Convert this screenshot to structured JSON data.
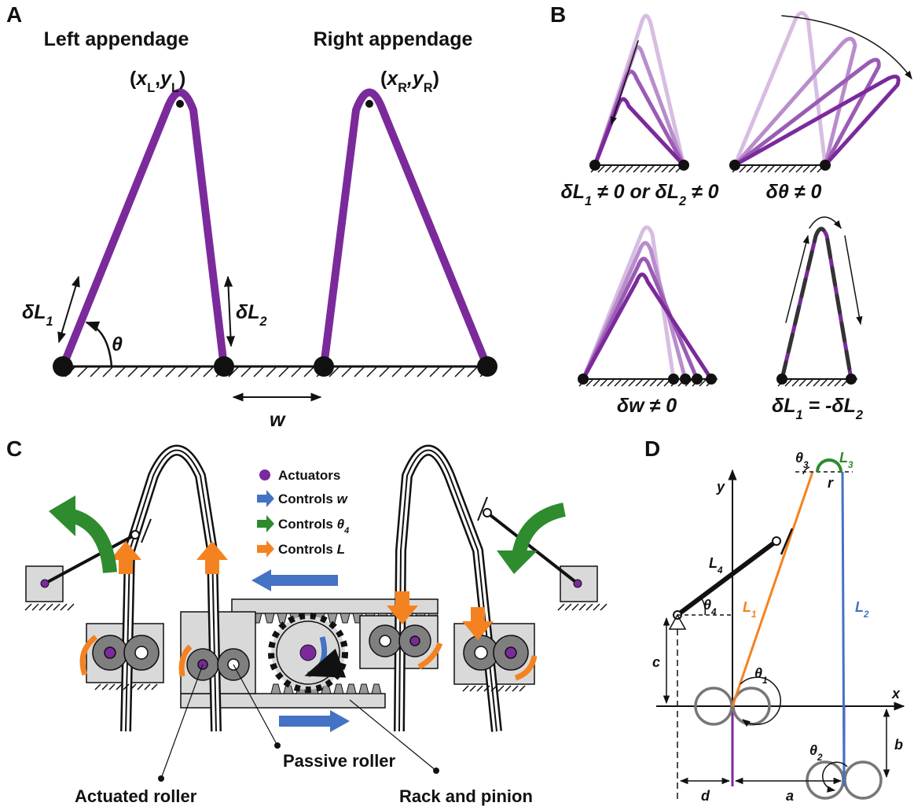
{
  "panel_labels": [
    "A",
    "B",
    "C",
    "D"
  ],
  "panel_a": {
    "left_title": "Left appendage",
    "right_title": "Right appendage",
    "left_point": [
      "(",
      "x",
      "L",
      ",",
      "y",
      "L",
      ")"
    ],
    "right_point": [
      "(",
      "x",
      "R",
      ",",
      "y",
      "R",
      ")"
    ],
    "delta_l1": [
      "δL",
      "1"
    ],
    "delta_l2": [
      "δL",
      "2"
    ],
    "theta": "θ",
    "w": "w"
  },
  "panel_b": {
    "captions": [
      [
        "δL",
        "1",
        " ≠ 0 or δL",
        "2",
        " ≠ 0"
      ],
      [
        "δθ ≠ 0"
      ],
      [
        "δw ≠ 0"
      ],
      [
        "δL",
        "1",
        " = -δL",
        "2"
      ]
    ]
  },
  "panel_c": {
    "legend": [
      [
        "Actuators"
      ],
      [
        "Controls ",
        "w"
      ],
      [
        "Controls ",
        "θ",
        "4"
      ],
      [
        "Controls ",
        "L"
      ]
    ],
    "labels": {
      "passive": "Passive roller",
      "actuated": "Actuated roller",
      "rack": "Rack and pinion"
    }
  },
  "panel_d": {
    "y_axis": "y",
    "x_axis": "x",
    "theta3": [
      "θ",
      "3"
    ],
    "l3": [
      "L",
      "3"
    ],
    "r": "r",
    "l4": [
      "L",
      "4"
    ],
    "theta4": [
      "θ",
      "4"
    ],
    "l1": [
      "L",
      "1"
    ],
    "l2": [
      "L",
      "2"
    ],
    "theta1": [
      "θ",
      "1"
    ],
    "c": "c",
    "theta2": [
      "θ",
      "2"
    ],
    "b": "b",
    "d": "d",
    "a": "a"
  }
}
